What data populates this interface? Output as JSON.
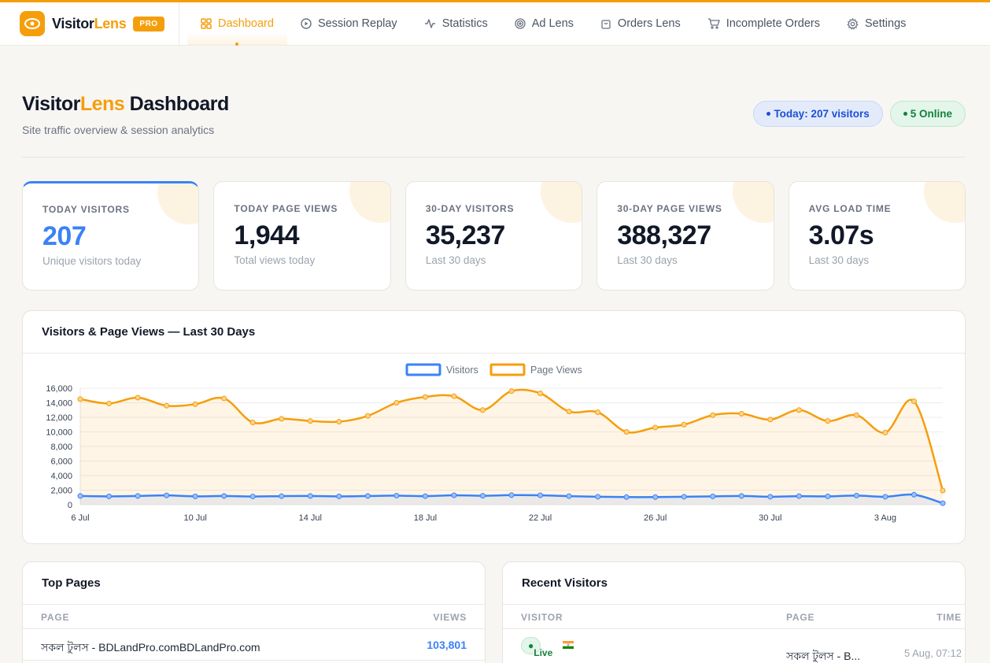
{
  "brand": {
    "name_main": "Visitor",
    "name_accent": "Lens",
    "badge": "PRO"
  },
  "nav": [
    {
      "label": "Dashboard",
      "icon": "grid-icon",
      "active": true
    },
    {
      "label": "Session Replay",
      "icon": "play-circle-icon"
    },
    {
      "label": "Statistics",
      "icon": "activity-icon"
    },
    {
      "label": "Ad Lens",
      "icon": "target-icon"
    },
    {
      "label": "Orders Lens",
      "icon": "shopping-bag-icon"
    },
    {
      "label": "Incomplete Orders",
      "icon": "cart-icon"
    },
    {
      "label": "Settings",
      "icon": "gear-icon"
    }
  ],
  "header": {
    "title_main": "Visitor",
    "title_accent": "Lens",
    "title_rest": " Dashboard",
    "subtitle": "Site traffic overview & session analytics",
    "pill_today": "Today: 207 visitors",
    "pill_online": "5 Online"
  },
  "stats": [
    {
      "label": "TODAY VISITORS",
      "value": "207",
      "note": "Unique visitors today"
    },
    {
      "label": "TODAY PAGE VIEWS",
      "value": "1,944",
      "note": "Total views today"
    },
    {
      "label": "30-DAY VISITORS",
      "value": "35,237",
      "note": "Last 30 days"
    },
    {
      "label": "30-DAY PAGE VIEWS",
      "value": "388,327",
      "note": "Last 30 days"
    },
    {
      "label": "AVG LOAD TIME",
      "value": "3.07s",
      "note": "Last 30 days"
    }
  ],
  "chart_title": "Visitors & Page Views — Last 30 Days",
  "chart_data": {
    "type": "line",
    "x": [
      "6 Jul",
      "7 Jul",
      "8 Jul",
      "9 Jul",
      "10 Jul",
      "11 Jul",
      "12 Jul",
      "13 Jul",
      "14 Jul",
      "15 Jul",
      "16 Jul",
      "17 Jul",
      "18 Jul",
      "19 Jul",
      "20 Jul",
      "21 Jul",
      "22 Jul",
      "23 Jul",
      "24 Jul",
      "25 Jul",
      "26 Jul",
      "27 Jul",
      "28 Jul",
      "29 Jul",
      "30 Jul",
      "31 Jul",
      "1 Aug",
      "2 Aug",
      "3 Aug",
      "4 Aug",
      "5 Aug"
    ],
    "tick_labels": [
      "6 Jul",
      "10 Jul",
      "14 Jul",
      "18 Jul",
      "22 Jul",
      "26 Jul",
      "30 Jul",
      "3 Aug"
    ],
    "series": [
      {
        "name": "Visitors",
        "color": "#3b82f6",
        "values": [
          1200,
          1150,
          1200,
          1280,
          1150,
          1200,
          1130,
          1180,
          1200,
          1150,
          1200,
          1250,
          1180,
          1300,
          1230,
          1320,
          1300,
          1180,
          1100,
          1050,
          1050,
          1100,
          1150,
          1200,
          1100,
          1180,
          1150,
          1260,
          1100,
          1380,
          207
        ]
      },
      {
        "name": "Page Views",
        "color": "#f59e0b",
        "values": [
          14500,
          13900,
          14700,
          13600,
          13800,
          14600,
          11300,
          11800,
          11500,
          11400,
          12200,
          14000,
          14800,
          14900,
          13000,
          15600,
          15300,
          12800,
          12700,
          10000,
          10600,
          11000,
          12300,
          12500,
          11700,
          13000,
          11500,
          12300,
          9900,
          14200,
          1944
        ]
      }
    ],
    "ylim": [
      0,
      16000
    ],
    "yticks": [
      "16,000",
      "14,000",
      "12,000",
      "10,000",
      "8,000",
      "6,000",
      "4,000",
      "2,000",
      "0"
    ],
    "grid": true,
    "legend": "top-center"
  },
  "top_pages": {
    "title": "Top Pages",
    "col_page": "PAGE",
    "col_views": "VIEWS",
    "rows": [
      {
        "page": "সকল টুলস - BDLandPro.comBDLandPro.com",
        "views": "103,801"
      }
    ]
  },
  "recent_visitors": {
    "title": "Recent Visitors",
    "col_visitor": "VISITOR",
    "col_page": "PAGE",
    "col_time": "TIME",
    "rows": [
      {
        "status": "Live",
        "page": "সকল টুলস - B...",
        "time": "5 Aug, 07:12"
      }
    ]
  }
}
